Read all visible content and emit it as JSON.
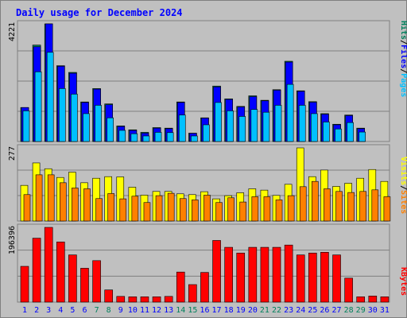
{
  "chart_data": {
    "type": "bar",
    "title": "Daily usage for December 2024",
    "categories": [
      "1",
      "2",
      "3",
      "4",
      "5",
      "6",
      "7",
      "8",
      "9",
      "10",
      "11",
      "12",
      "13",
      "14",
      "15",
      "16",
      "17",
      "18",
      "19",
      "20",
      "21",
      "22",
      "23",
      "24",
      "25",
      "26",
      "27",
      "28",
      "29",
      "30",
      "31"
    ],
    "weekend_days": [
      "7",
      "8",
      "14",
      "15",
      "21",
      "22",
      "28",
      "29"
    ],
    "legend_top": [
      "Pages",
      "Files",
      "Hits"
    ],
    "legend_mid": [
      "Sites",
      "Visits"
    ],
    "legend_bot": [
      "KBytes"
    ],
    "panels": [
      {
        "id": "hits",
        "max_label": "4221",
        "series": [
          {
            "name": "Hits",
            "values": [
              1220,
              3460,
              4221,
              2720,
              2480,
              1420,
              1900,
              1350,
              560,
              420,
              330,
              500,
              480,
              1420,
              300,
              850,
              1990,
              1530,
              1260,
              1640,
              1480,
              1860,
              2880,
              1820,
              1430,
              1000,
              620,
              950,
              480
            ]
          },
          {
            "name": "Files",
            "values": [
              1220,
              3400,
              4221,
              2700,
              2450,
              1400,
              1880,
              1320,
              540,
              400,
              300,
              480,
              460,
              1400,
              290,
              840,
              1960,
              1510,
              1240,
              1610,
              1460,
              1840,
              2850,
              1800,
              1410,
              980,
              600,
              930,
              460
            ]
          },
          {
            "name": "Pages",
            "values": [
              1100,
              2500,
              3200,
              1900,
              1700,
              1000,
              1300,
              850,
              400,
              280,
              200,
              330,
              320,
              950,
              200,
              600,
              1400,
              1100,
              900,
              1150,
              1050,
              1300,
              2050,
              1300,
              1000,
              700,
              450,
              680,
              340
            ]
          }
        ],
        "full_values_hits": [
          1220,
          3460,
          4221,
          2720,
          2480,
          1420,
          1900,
          1350,
          560,
          420,
          330,
          500,
          480,
          1420,
          300,
          850,
          1990,
          1530,
          1260,
          1640,
          1480,
          1860,
          2880,
          1820,
          1430,
          1000,
          620,
          950,
          480,
          0,
          0
        ],
        "full_values_files": [
          1220,
          3400,
          4221,
          2700,
          2450,
          1400,
          1880,
          1320,
          540,
          400,
          300,
          480,
          460,
          1400,
          290,
          840,
          1960,
          1510,
          1240,
          1610,
          1460,
          1840,
          2850,
          1800,
          1410,
          980,
          600,
          930,
          460,
          0,
          0
        ],
        "full_values_pages": [
          1100,
          2500,
          3200,
          1900,
          1700,
          1000,
          1300,
          850,
          400,
          280,
          200,
          330,
          320,
          950,
          200,
          600,
          1400,
          1100,
          900,
          1150,
          1050,
          1300,
          2050,
          1300,
          1000,
          700,
          450,
          680,
          340,
          0,
          0
        ]
      },
      {
        "id": "visits",
        "max_label": "277",
        "full_values_visits": [
          135,
          220,
          198,
          165,
          185,
          145,
          162,
          168,
          167,
          128,
          98,
          112,
          112,
          103,
          100,
          111,
          84,
          96,
          107,
          122,
          117,
          97,
          139,
          277,
          168,
          193,
          131,
          143,
          162,
          195,
          150
        ],
        "full_values_sites": [
          100,
          175,
          175,
          145,
          125,
          122,
          85,
          104,
          84,
          94,
          70,
          96,
          105,
          85,
          80,
          98,
          70,
          88,
          72,
          92,
          92,
          80,
          96,
          130,
          150,
          122,
          112,
          108,
          112,
          118,
          92
        ]
      },
      {
        "id": "kbytes",
        "max_label": "196396",
        "full_values_kbytes": [
          94000,
          168000,
          196396,
          158000,
          124000,
          89000,
          109000,
          32000,
          15000,
          14000,
          14000,
          14000,
          15000,
          79000,
          46000,
          78000,
          162000,
          144000,
          129000,
          144000,
          144000,
          144000,
          150000,
          124000,
          129000,
          131000,
          124000,
          63000,
          14000,
          16000,
          14000
        ]
      }
    ],
    "colors": {
      "hits": "#00805c",
      "files": "#0000ff",
      "pages": "#00c0ff",
      "visits": "#ffff00",
      "sites": "#ff8000",
      "kbytes": "#ff0000",
      "title": "#0000ff",
      "day_weekday": "#0000ff",
      "day_weekend": "#00805c"
    }
  }
}
